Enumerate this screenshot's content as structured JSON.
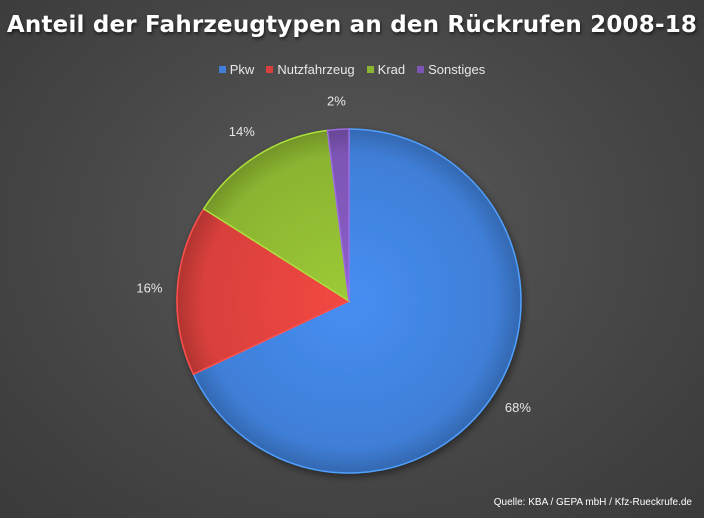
{
  "chart_data": {
    "type": "pie",
    "title": "Anteil der Fahrzeugtypen an den Rückrufen 2008-18",
    "categories": [
      "Pkw",
      "Nutzfahrzeug",
      "Krad",
      "Sonstiges"
    ],
    "values": [
      68,
      16,
      14,
      2
    ],
    "labels": [
      "68%",
      "16%",
      "14%",
      "2%"
    ],
    "colors": [
      "#3f7fd8",
      "#d9403c",
      "#8bb431",
      "#7d55b4"
    ],
    "legend": "top"
  },
  "source": "Quelle: KBA / GEPA mbH / Kfz-Rueckrufe.de"
}
